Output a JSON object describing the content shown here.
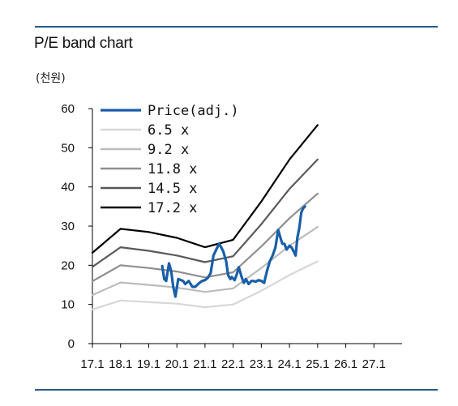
{
  "header": {
    "title": "P/E band chart",
    "unit": "(천원)"
  },
  "chart_data": {
    "type": "line",
    "title": "P/E band chart",
    "ylabel": "(천원)",
    "xlabel": "",
    "ylim": [
      0,
      60
    ],
    "yticks": [
      0,
      10,
      20,
      30,
      40,
      50,
      60
    ],
    "xlim": [
      2017.0,
      2028.0
    ],
    "xtick_labels": [
      "17.1",
      "18.1",
      "19.1",
      "20.1",
      "21.1",
      "22.1",
      "23.1",
      "24.1",
      "25.1",
      "26.1",
      "27.1"
    ],
    "xtick_values": [
      2017.0,
      2018.0,
      2019.0,
      2020.0,
      2021.0,
      2022.0,
      2023.0,
      2024.0,
      2025.0,
      2026.0,
      2027.0
    ],
    "grid": false,
    "legend_position": "top-left",
    "series": [
      {
        "name": "Price(adj.)",
        "color": "#1a5ea8",
        "x": [
          2019.48,
          2019.55,
          2019.62,
          2019.72,
          2019.8,
          2019.87,
          2019.95,
          2020.05,
          2020.15,
          2020.22,
          2020.3,
          2020.42,
          2020.55,
          2020.65,
          2020.8,
          2020.9,
          2021.0,
          2021.1,
          2021.2,
          2021.3,
          2021.4,
          2021.5,
          2021.58,
          2021.65,
          2021.75,
          2021.82,
          2021.9,
          2021.95,
          2022.05,
          2022.12,
          2022.2,
          2022.3,
          2022.38,
          2022.45,
          2022.55,
          2022.65,
          2022.72,
          2022.8,
          2022.9,
          2023.0,
          2023.1,
          2023.2,
          2023.3,
          2023.4,
          2023.5,
          2023.6,
          2023.7,
          2023.75,
          2023.82,
          2023.9,
          2024.0,
          2024.08,
          2024.15,
          2024.22,
          2024.28,
          2024.35,
          2024.42,
          2024.48,
          2024.55
        ],
        "y": [
          19.8,
          16.5,
          16.0,
          20.5,
          18.5,
          14.5,
          12.0,
          16.5,
          16.2,
          16.0,
          15.2,
          16.0,
          14.5,
          14.5,
          15.5,
          16.0,
          16.2,
          16.8,
          18.0,
          22.5,
          24.0,
          25.5,
          24.5,
          23.5,
          21.0,
          17.5,
          16.5,
          17.0,
          16.2,
          17.5,
          19.5,
          17.0,
          15.5,
          16.5,
          15.2,
          16.0,
          16.0,
          15.8,
          16.2,
          16.0,
          15.5,
          18.5,
          21.0,
          22.5,
          24.5,
          29.0,
          26.5,
          25.5,
          25.5,
          24.0,
          25.0,
          24.5,
          23.5,
          22.5,
          27.0,
          29.5,
          33.5,
          34.5,
          35.0
        ]
      },
      {
        "name": "6.5 x",
        "color": "#d7d7d7",
        "x": [
          2017.0,
          2018.0,
          2019.0,
          2020.0,
          2021.0,
          2022.0,
          2023.0,
          2024.0,
          2025.0
        ],
        "y": [
          8.7,
          11.0,
          10.6,
          10.2,
          9.3,
          10.0,
          13.5,
          17.5,
          21.0
        ]
      },
      {
        "name": "9.2 x",
        "color": "#bcbcbc",
        "x": [
          2017.0,
          2018.0,
          2019.0,
          2020.0,
          2021.0,
          2022.0,
          2023.0,
          2024.0,
          2025.0
        ],
        "y": [
          12.4,
          15.6,
          15.0,
          14.3,
          13.2,
          14.1,
          19.3,
          25.0,
          29.8
        ]
      },
      {
        "name": "11.8 x",
        "color": "#8f8f8f",
        "x": [
          2017.0,
          2018.0,
          2019.0,
          2020.0,
          2021.0,
          2022.0,
          2023.0,
          2024.0,
          2025.0
        ],
        "y": [
          15.9,
          20.0,
          19.3,
          18.4,
          16.9,
          18.2,
          24.8,
          32.0,
          38.3
        ]
      },
      {
        "name": "14.5 x",
        "color": "#5a5a5a",
        "x": [
          2017.0,
          2018.0,
          2019.0,
          2020.0,
          2021.0,
          2022.0,
          2023.0,
          2024.0,
          2025.0
        ],
        "y": [
          19.6,
          24.6,
          23.7,
          22.5,
          20.8,
          22.3,
          30.5,
          39.5,
          47.0
        ]
      },
      {
        "name": "17.2 x",
        "color": "#000000",
        "x": [
          2017.0,
          2018.0,
          2019.0,
          2020.0,
          2021.0,
          2022.0,
          2023.0,
          2024.0,
          2025.0
        ],
        "y": [
          23.2,
          29.3,
          28.5,
          27.0,
          24.6,
          26.5,
          36.3,
          47.0,
          55.8
        ]
      }
    ]
  }
}
